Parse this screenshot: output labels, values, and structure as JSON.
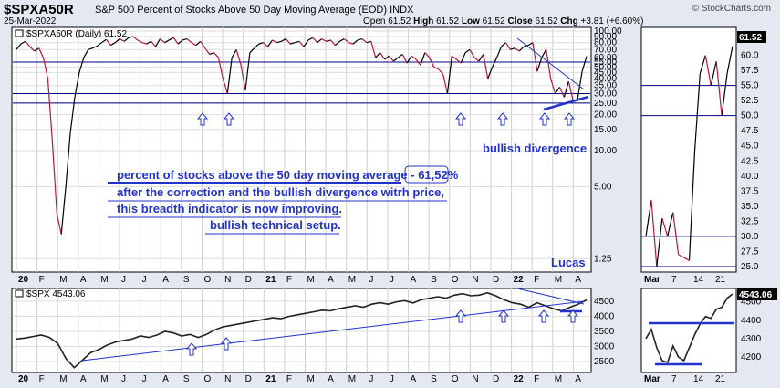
{
  "header": {
    "symbol": "$SPXA50R",
    "description": "S&P 500 Percent of Stocks Above 50 Day Moving Average (EOD)",
    "exchange": "INDX",
    "date": "25-Mar-2022",
    "brand": "© StockCharts.com",
    "open_label": "Open",
    "open": "61.52",
    "high_label": "High",
    "high": "61.52",
    "low_label": "Low",
    "low": "61.52",
    "close_label": "Close",
    "close": "61.52",
    "chg_label": "Chg",
    "chg": "+3.81 (+6.60%)"
  },
  "top_panel": {
    "legend": "$SPXA50R (Daily) 61.52",
    "last_value": "61.52"
  },
  "bottom_panel": {
    "legend": "$SPX 4543.06",
    "last_value": "4543.06"
  },
  "annotations": {
    "bullish_divergence": "bullish divergence",
    "line1a": "percent of stocks above the 50 day moving average - ",
    "line1b": "61,52%",
    "line2": "after the correction and the bullish divergence witrh price,",
    "line3": "this breadth indicator is now improving.",
    "line4": "bullish technical setup.",
    "author": "Lucas"
  },
  "colors": {
    "up": "#000000",
    "down": "#c0143c",
    "annotation": "#2233cc",
    "hline": "#000080"
  },
  "chart_data": [
    {
      "type": "line",
      "name": "$SPXA50R main panel",
      "y_scale": "log",
      "y_ticks": [
        "100.00",
        "90.00",
        "80.00",
        "70.00",
        "60.00",
        "55.00",
        "50.00",
        "45.00",
        "40.00",
        "35.00",
        "30.00",
        "25.00",
        "20.00",
        "15.00",
        "10.00",
        "5.00",
        "1.25"
      ],
      "x_ticks": [
        "20",
        "F",
        "M",
        "A",
        "M",
        "J",
        "J",
        "A",
        "S",
        "O",
        "N",
        "D",
        "21",
        "F",
        "M",
        "A",
        "M",
        "J",
        "J",
        "A",
        "S",
        "O",
        "N",
        "D",
        "22",
        "F",
        "M",
        "A"
      ],
      "horizontal_lines": [
        55,
        30,
        25
      ],
      "values": [
        70,
        78,
        82,
        74,
        68,
        72,
        60,
        40,
        12,
        3,
        2,
        5,
        14,
        28,
        45,
        60,
        70,
        72,
        75,
        80,
        85,
        76,
        80,
        86,
        82,
        88,
        90,
        84,
        80,
        78,
        82,
        74,
        86,
        80,
        84,
        88,
        78,
        84,
        86,
        80,
        76,
        82,
        72,
        64,
        66,
        60,
        40,
        30,
        60,
        70,
        52,
        32,
        66,
        72,
        78,
        80,
        74,
        84,
        80,
        82,
        86,
        78,
        80,
        82,
        74,
        84,
        88,
        80,
        86,
        82,
        84,
        76,
        82,
        86,
        80,
        78,
        84,
        86,
        80,
        82,
        60,
        66,
        58,
        62,
        56,
        60,
        64,
        54,
        62,
        58,
        52,
        66,
        60,
        50,
        48,
        44,
        30,
        62,
        58,
        54,
        66,
        70,
        60,
        56,
        64,
        40,
        50,
        60,
        74,
        80,
        70,
        72,
        68,
        74,
        76,
        80,
        46,
        60,
        70,
        40,
        30,
        34,
        28,
        38,
        26,
        27,
        46,
        61.52
      ]
    },
    {
      "type": "line",
      "name": "$SPXA50R inset (Mar 2022)",
      "x_ticks": [
        "Mar",
        "7",
        "14",
        "21"
      ],
      "y_ticks": [
        "62.5",
        "60.0",
        "57.5",
        "55.0",
        "52.5",
        "50.0",
        "47.5",
        "45.0",
        "42.5",
        "40.0",
        "37.5",
        "35.0",
        "32.5",
        "30.0",
        "27.5",
        "25.0"
      ],
      "horizontal_lines": [
        55,
        50,
        30,
        25
      ],
      "values": [
        30,
        36,
        25,
        33,
        30,
        34,
        27,
        26.5,
        26,
        44,
        57,
        60,
        55,
        59,
        50,
        57,
        61.52
      ]
    },
    {
      "type": "line",
      "name": "$SPX price panel",
      "y_ticks": [
        "4500",
        "4000",
        "3500",
        "3000",
        "2500"
      ],
      "x_ticks": [
        "20",
        "F",
        "M",
        "A",
        "M",
        "J",
        "J",
        "A",
        "S",
        "O",
        "N",
        "D",
        "21",
        "F",
        "M",
        "A",
        "M",
        "J",
        "J",
        "A",
        "S",
        "O",
        "N",
        "D",
        "22",
        "F",
        "M",
        "A"
      ],
      "values": [
        3250,
        3280,
        3330,
        3380,
        3300,
        3100,
        2600,
        2300,
        2550,
        2800,
        2900,
        3050,
        3150,
        3200,
        3250,
        3350,
        3300,
        3380,
        3500,
        3450,
        3350,
        3400,
        3300,
        3400,
        3550,
        3650,
        3700,
        3750,
        3800,
        3850,
        3900,
        3950,
        3920,
        4000,
        4050,
        4100,
        4150,
        4200,
        4180,
        4250,
        4300,
        4350,
        4300,
        4400,
        4450,
        4400,
        4480,
        4520,
        4440,
        4550,
        4600,
        4650,
        4600,
        4700,
        4750,
        4680,
        4700,
        4780,
        4680,
        4550,
        4450,
        4400,
        4300,
        4450,
        4350,
        4250,
        4180,
        4300,
        4400,
        4543.06
      ]
    },
    {
      "type": "line",
      "name": "$SPX inset (Mar 2022)",
      "x_ticks": [
        "Mar",
        "7",
        "14",
        "21"
      ],
      "y_ticks": [
        "4500",
        "4400",
        "4300",
        "4200"
      ],
      "horizontal_lines": [
        4380,
        4170
      ],
      "values": [
        4300,
        4350,
        4250,
        4180,
        4170,
        4260,
        4200,
        4180,
        4250,
        4320,
        4380,
        4420,
        4410,
        4460,
        4470,
        4520,
        4543.06
      ]
    }
  ]
}
